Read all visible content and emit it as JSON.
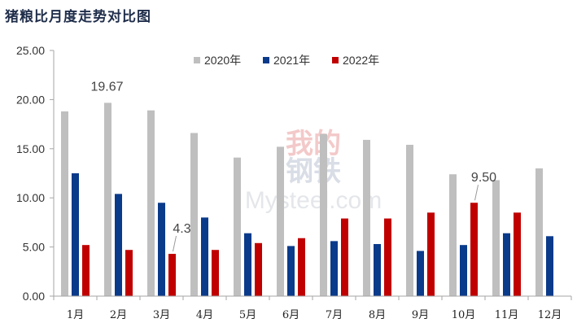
{
  "chart_data": {
    "type": "bar",
    "title": "猪粮比月度走势对比图",
    "categories": [
      "1月",
      "2月",
      "3月",
      "4月",
      "5月",
      "6月",
      "7月",
      "8月",
      "9月",
      "10月",
      "11月",
      "12月"
    ],
    "series": [
      {
        "name": "2020年",
        "color": "#bfbfbf",
        "values": [
          18.8,
          19.67,
          18.9,
          16.6,
          14.1,
          15.2,
          16.5,
          15.9,
          15.4,
          12.4,
          11.8,
          13.0
        ]
      },
      {
        "name": "2021年",
        "color": "#0a3a8a",
        "values": [
          12.5,
          10.4,
          9.5,
          8.0,
          6.4,
          5.1,
          5.6,
          5.3,
          4.6,
          5.2,
          6.4,
          6.1
        ]
      },
      {
        "name": "2022年",
        "color": "#c00000",
        "values": [
          5.2,
          4.7,
          4.3,
          4.7,
          5.4,
          5.9,
          7.9,
          7.9,
          8.5,
          9.5,
          8.5,
          null
        ]
      }
    ],
    "ylim": [
      0,
      25
    ],
    "yticks": [
      "0.00",
      "5.00",
      "10.00",
      "15.00",
      "20.00",
      "25.00"
    ],
    "legend_position": "top",
    "annotations": [
      {
        "text": "19.67",
        "series": 0,
        "category": 1
      },
      {
        "text": "4.3",
        "series": 2,
        "category": 2
      },
      {
        "text": "9.50",
        "series": 2,
        "category": 9
      }
    ],
    "watermark": {
      "line1": "我的",
      "line2": "钢铁",
      "line3": "Mysteel.com"
    }
  }
}
